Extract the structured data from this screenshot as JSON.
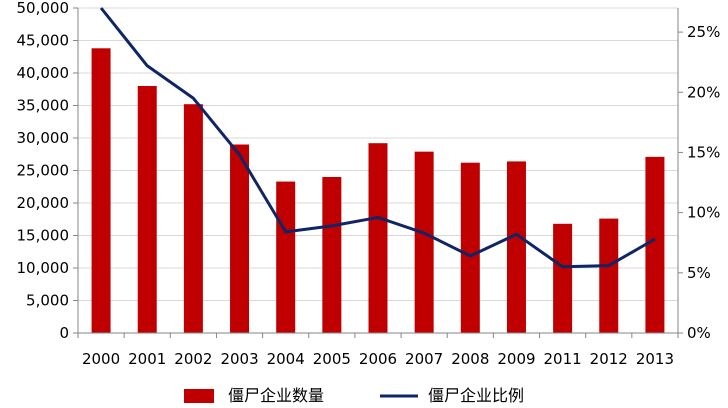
{
  "chart_data": {
    "type": "bar",
    "categories": [
      "2000",
      "2001",
      "2002",
      "2003",
      "2004",
      "2005",
      "2006",
      "2007",
      "2008",
      "2009",
      "2011",
      "2012",
      "2013"
    ],
    "series": [
      {
        "name": "僵尸企业数量",
        "type": "bar",
        "axis": "left",
        "color": "#C00000",
        "values": [
          43800,
          38000,
          35200,
          29000,
          23300,
          24000,
          29200,
          27900,
          26200,
          26400,
          16800,
          17600,
          27100
        ]
      },
      {
        "name": "僵尸企业比例",
        "type": "line",
        "axis": "right",
        "color": "#0F2566",
        "values": [
          27.0,
          22.2,
          19.5,
          14.8,
          8.4,
          8.9,
          9.6,
          8.3,
          6.4,
          8.2,
          5.5,
          5.6,
          7.8
        ]
      }
    ],
    "y_left": {
      "range": [
        0,
        50000
      ],
      "ticks": [
        0,
        5000,
        10000,
        15000,
        20000,
        25000,
        30000,
        35000,
        40000,
        45000,
        50000
      ],
      "tick_labels": [
        "0",
        "5,000",
        "10,000",
        "15,000",
        "20,000",
        "25,000",
        "30,000",
        "35,000",
        "40,000",
        "45,000",
        "50,000"
      ]
    },
    "y_right": {
      "range": [
        0,
        27
      ],
      "ticks": [
        0,
        5,
        10,
        15,
        20,
        25
      ],
      "tick_labels": [
        "0%",
        "5%",
        "10%",
        "15%",
        "20%",
        "25%"
      ]
    },
    "grid": true,
    "legend_position": "bottom"
  }
}
